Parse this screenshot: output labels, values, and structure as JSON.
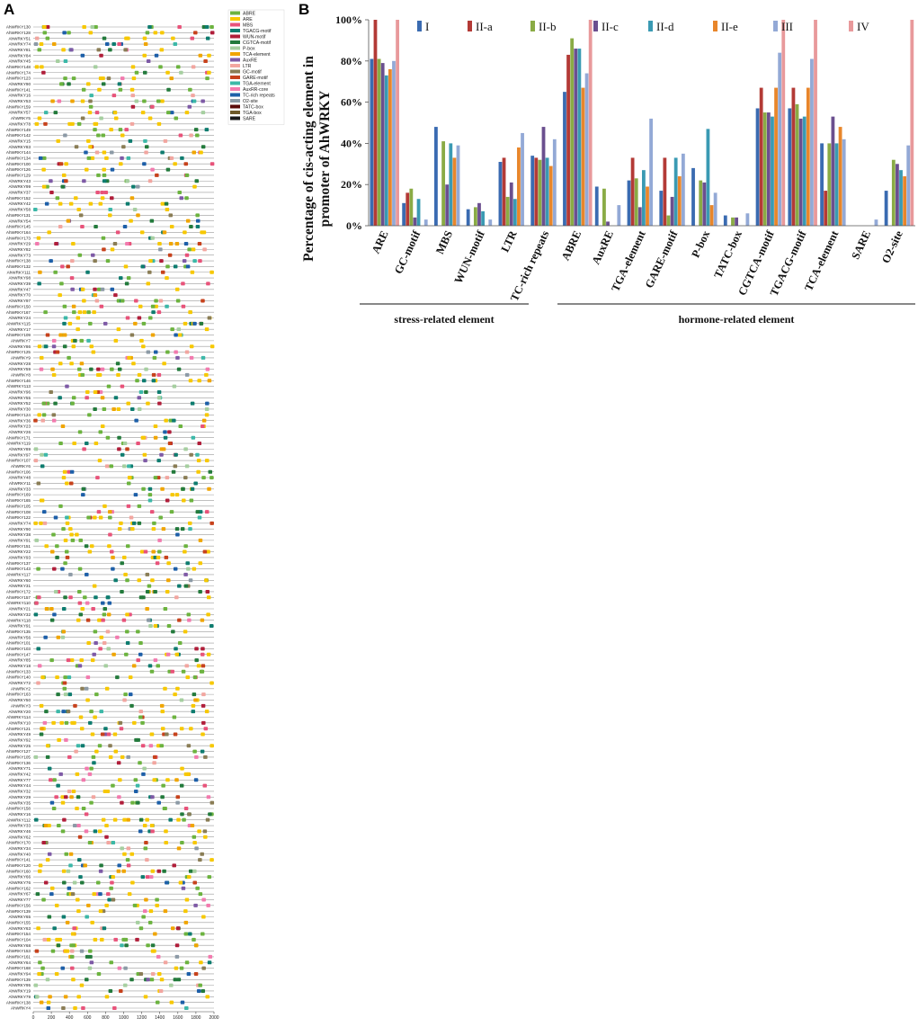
{
  "panels": {
    "a_label": "A",
    "b_label": "B"
  },
  "chart_data": [
    {
      "type": "scatter",
      "panel": "A",
      "xlim": [
        0,
        2000
      ],
      "x_ticks": [
        "0",
        "200",
        "400",
        "600",
        "800",
        "1000",
        "1200",
        "1400",
        "1600",
        "1800",
        "2000"
      ],
      "legend_position": "top-right",
      "legend": [
        {
          "name": "ABRE",
          "color": "#6cb33f"
        },
        {
          "name": "ARE",
          "color": "#f7c800"
        },
        {
          "name": "MBS",
          "color": "#e8537a"
        },
        {
          "name": "TGACG-motif",
          "color": "#0e7c6f"
        },
        {
          "name": "WUN-motif",
          "color": "#b01e3a"
        },
        {
          "name": "CGTCA-motif",
          "color": "#237a3c"
        },
        {
          "name": "P-box",
          "color": "#a6cfa0"
        },
        {
          "name": "TCA-element",
          "color": "#f0a500"
        },
        {
          "name": "AuxRE",
          "color": "#7e5aa6"
        },
        {
          "name": "LTR",
          "color": "#f2a6a0"
        },
        {
          "name": "GC-motif",
          "color": "#8a7d55"
        },
        {
          "name": "GARE-motif",
          "color": "#c7421c"
        },
        {
          "name": "TGA-element",
          "color": "#3cb8a8"
        },
        {
          "name": "AuxRR-core",
          "color": "#f27aae"
        },
        {
          "name": "TC-rich repeats",
          "color": "#1d5fa8"
        },
        {
          "name": "O2-site",
          "color": "#8c9aa6"
        },
        {
          "name": "TATC-box",
          "color": "#5a0a0a"
        },
        {
          "name": "TGA-box",
          "color": "#6e5a2a"
        },
        {
          "name": "SARE",
          "color": "#1a1a1a"
        }
      ],
      "rows": [
        "AhWRKY130",
        "AhWRKY128",
        "AhWRKY51",
        "AhWRKY74",
        "AhWRKY81",
        "AhWRKY84",
        "AhWRKY45",
        "AhWRKY148",
        "AhWRKY174",
        "AhWRKY123",
        "AhWRKY90",
        "AhWRKY141",
        "AhWRKY16",
        "AhWRKY53",
        "AhWRKY159",
        "AhWRKY57",
        "AhWRKY5",
        "AhWRKY78",
        "AhWRKY149",
        "AhWRKY142",
        "AhWRKY15",
        "AhWRKY83",
        "AhWRKY144",
        "AhWRKY134",
        "AhWRKY100",
        "AhWRKY126",
        "AhWRKY129",
        "AhWRKY43",
        "AhWRKY99",
        "AhWRKY37",
        "AhWRKY152",
        "AhWRKY42",
        "AhWRKY58",
        "AhWRKY131",
        "AhWRKY54",
        "AhWRKY145",
        "AhWRKY164",
        "AhWRKY173",
        "AhWRKY29",
        "AhWRKY82",
        "AhWRKY73",
        "AhWRKY138",
        "AhWRKY132",
        "AhWRKY111",
        "AhWRKY98",
        "AhWRKY39",
        "AhWRKY47",
        "AhWRKY70",
        "AhWRKY97",
        "AhWRKY150",
        "AhWRKY167",
        "AhWRKY24",
        "AhWRKY115",
        "AhWRKY17",
        "AhWRKY109",
        "AhWRKY7",
        "AhWRKY86",
        "AhWRKY125",
        "AhWRKY9",
        "AhWRKY28",
        "AhWRKY59",
        "AhWRKY8",
        "AhWRKY146",
        "AhWRKY113",
        "AhWRKY96",
        "AhWRKY55",
        "AhWRKY52",
        "AhWRKY30",
        "AhWRKY124",
        "AhWRKY36",
        "AhWRKY23",
        "AhWRKY26",
        "AhWRKY171",
        "AhWRKY119",
        "AhWRKY89",
        "AhWRKY97",
        "AhWRKY107",
        "AhWRKY6",
        "AhWRKY106",
        "AhWRKY48",
        "AhWRKY11",
        "AhWRKY33",
        "AhWRKY169",
        "AhWRKY165",
        "AhWRKY105",
        "AhWRKY108",
        "AhWRKY122",
        "AhWRKY74",
        "AhWRKY90",
        "AhWRKY38",
        "AhWRKY91",
        "AhWRKY151",
        "AhWRKY22",
        "AhWRKY93",
        "AhWRKY137",
        "AhWRKY143",
        "AhWRKY117",
        "AhWRKY60",
        "AhWRKY31",
        "AhWRKY172",
        "AhWRKY157",
        "AhWRKY110",
        "AhWRKY21",
        "AhWRKY32",
        "AhWRKY118",
        "AhWRKY91",
        "AhWRKY135",
        "AhWRKY56",
        "AhWRKY101",
        "AhWRKY103",
        "AhWRKY147",
        "AhWRKY85",
        "AhWRKY18",
        "AhWRKY133",
        "AhWRKY140",
        "AhWRKY72",
        "AhWRKY2",
        "AhWRKY163",
        "AhWRKY50",
        "AhWRKY3",
        "AhWRKY20",
        "AhWRKY114",
        "AhWRKY10",
        "AhWRKY121",
        "AhWRKY49",
        "AhWRKY92",
        "AhWRKY25",
        "AhWRKY127",
        "AhWRKY105",
        "AhWRKY136",
        "AhWRKY71",
        "AhWRKY42",
        "AhWRKY77",
        "AhWRKY44",
        "AhWRKY32",
        "AhWRKY29",
        "AhWRKY35",
        "AhWRKY158",
        "AhWRKY16",
        "AhWRKY112",
        "AhWRKY33",
        "AhWRKY46",
        "AhWRKY62",
        "AhWRKY170",
        "AhWRKY34",
        "AhWRKY40",
        "AhWRKY141",
        "AhWRKY120",
        "AhWRKY160",
        "AhWRKY66",
        "AhWRKY76",
        "AhWRKY162",
        "AhWRKY67",
        "AhWRKY77",
        "AhWRKY156",
        "AhWRKY139",
        "AhWRKY65",
        "AhWRKY155",
        "AhWRKY63",
        "AhWRKY154",
        "AhWRKY104",
        "AhWRKY68",
        "AhWRKY153",
        "AhWRKY161",
        "AhWRKY64",
        "AhWRKY168",
        "AhWRKY94",
        "AhWRKY139",
        "AhWRKY95",
        "AhWRKY19",
        "AhWRKY79",
        "AhWRKY138",
        "AhWRKY4"
      ]
    },
    {
      "type": "bar",
      "panel": "B",
      "ylabel": [
        "Percentage of cis-acting element in",
        "promoter of AhWRKY"
      ],
      "ylim": [
        0,
        100
      ],
      "y_ticks": [
        "0%",
        "20%",
        "40%",
        "60%",
        "80%",
        "100%"
      ],
      "legend_position": "top",
      "categories": [
        "ARE",
        "GC-motif",
        "MBS",
        "WUN-motif",
        "LTR",
        "TC-rich repeats",
        "ABRE",
        "AuxRE",
        "TGA-element",
        "GARE-motif",
        "P-box",
        "TATC-box",
        "CGTCA-motif",
        "TGACG-motif",
        "TCA-element",
        "SARE",
        "O2-site"
      ],
      "series": [
        {
          "name": "I",
          "color": "#3a6bb1",
          "values": [
            81,
            11,
            48,
            8,
            31,
            34,
            65,
            19,
            22,
            17,
            28,
            5,
            57,
            57,
            40,
            0,
            17
          ]
        },
        {
          "name": "II-a",
          "color": "#b33a36",
          "values": [
            100,
            16,
            0,
            0,
            33,
            33,
            83,
            0,
            33,
            33,
            0,
            0,
            67,
            67,
            17,
            0,
            0
          ]
        },
        {
          "name": "II-b",
          "color": "#8aab45",
          "values": [
            81,
            18,
            41,
            9,
            14,
            32,
            91,
            18,
            23,
            5,
            22,
            4,
            55,
            59,
            40,
            0,
            32
          ]
        },
        {
          "name": "II-c",
          "color": "#6b4f8f",
          "values": [
            79,
            4,
            20,
            11,
            21,
            48,
            86,
            2,
            9,
            14,
            21,
            4,
            55,
            52,
            53,
            0,
            30
          ]
        },
        {
          "name": "II-d",
          "color": "#3a9ab3",
          "values": [
            73,
            13,
            40,
            7,
            13,
            33,
            86,
            0,
            27,
            33,
            47,
            0,
            53,
            53,
            40,
            0,
            27
          ]
        },
        {
          "name": "II-e",
          "color": "#e8862b",
          "values": [
            76,
            0,
            33,
            0,
            38,
            29,
            67,
            0,
            19,
            24,
            10,
            0,
            67,
            67,
            48,
            0,
            24
          ]
        },
        {
          "name": "III",
          "color": "#93a9d6",
          "values": [
            80,
            3,
            39,
            3,
            45,
            42,
            74,
            10,
            52,
            35,
            16,
            6,
            84,
            81,
            42,
            3,
            39
          ]
        },
        {
          "name": "IV",
          "color": "#e8999b",
          "values": [
            100,
            0,
            0,
            0,
            0,
            0,
            100,
            0,
            0,
            0,
            0,
            0,
            100,
            100,
            0,
            0,
            100
          ]
        }
      ],
      "groups": [
        {
          "name": "stress-related element",
          "categories": [
            "ARE",
            "GC-motif",
            "MBS",
            "WUN-motif",
            "LTR",
            "TC-rich repeats"
          ]
        },
        {
          "name": "hormone-related element",
          "categories": [
            "ABRE",
            "AuxRE",
            "TGA-element",
            "GARE-motif",
            "P-box",
            "TATC-box",
            "CGTCA-motif",
            "TGACG-motif",
            "TCA-element",
            "SARE",
            "O2-site"
          ]
        }
      ]
    }
  ]
}
